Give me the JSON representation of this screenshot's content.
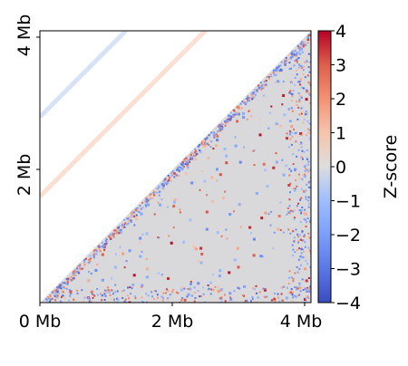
{
  "chart_data": {
    "type": "heatmap",
    "title": "",
    "matrix_shape": "upper-right triangle",
    "xlabel": "",
    "ylabel": "",
    "xlim": [
      0,
      4.1
    ],
    "ylim": [
      0,
      4.1
    ],
    "x_unit": "Mb",
    "y_unit": "Mb",
    "x_ticks": [
      {
        "value": 0,
        "label": "0 Mb"
      },
      {
        "value": 2,
        "label": "2 Mb"
      },
      {
        "value": 4,
        "label": "4 Mb"
      }
    ],
    "y_ticks": [
      {
        "value": 2,
        "label": "2 Mb"
      },
      {
        "value": 4,
        "label": "4 Mb"
      }
    ],
    "colorbar": {
      "label": "Z-score",
      "min": -4,
      "max": 4,
      "colormap": "coolwarm",
      "ticks": [
        {
          "value": 4,
          "label": "4"
        },
        {
          "value": 3,
          "label": "3"
        },
        {
          "value": 2,
          "label": "2"
        },
        {
          "value": 1,
          "label": "1"
        },
        {
          "value": 0,
          "label": "0"
        },
        {
          "value": -1,
          "label": "−1"
        },
        {
          "value": -2,
          "label": "−2"
        },
        {
          "value": -3,
          "label": "−3"
        },
        {
          "value": -4,
          "label": "−4"
        }
      ]
    },
    "background_zscore": 0,
    "notable_features": [
      {
        "kind": "diagonal-band",
        "offset_mb": 1.6,
        "value": 1.0
      },
      {
        "kind": "diagonal-band",
        "offset_mb": 2.8,
        "value": -0.6
      }
    ],
    "grid": false
  }
}
